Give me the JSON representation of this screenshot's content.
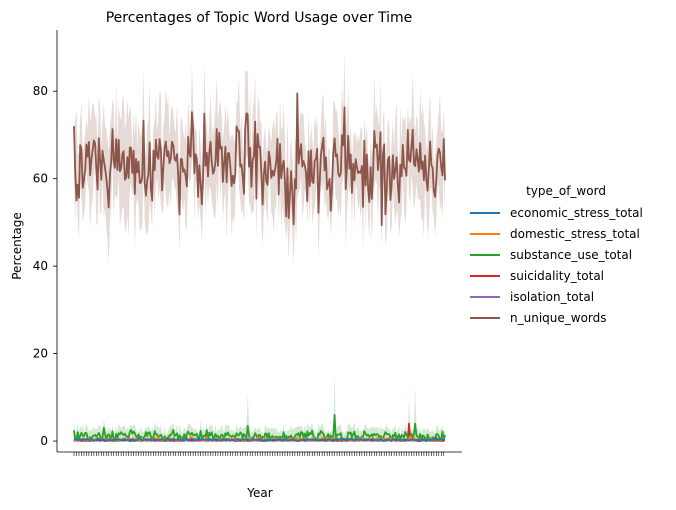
{
  "chart_data": {
    "type": "line",
    "title": "Percentages of Topic Word Usage over Time",
    "xlabel": "Year",
    "ylabel": "Percentage",
    "ylim": [
      -2.5,
      94
    ],
    "yticks": [
      0,
      20,
      40,
      60,
      80
    ],
    "legend": {
      "title": "type_of_word",
      "placement": "right"
    },
    "series": [
      {
        "name": "economic_stress_total",
        "color": "#1f77b4",
        "mean": 0.3,
        "spread": 0.2
      },
      {
        "name": "domestic_stress_total",
        "color": "#ff7f0e",
        "mean": 0.4,
        "spread": 0.4
      },
      {
        "name": "substance_use_total",
        "color": "#2ca02c",
        "mean": 1.2,
        "spread": 1.0
      },
      {
        "name": "suicidality_total",
        "color": "#d62728",
        "mean": 0.2,
        "spread": 0.2
      },
      {
        "name": "isolation_total",
        "color": "#9467bd",
        "mean": 0.1,
        "spread": 0.1
      },
      {
        "name": "n_unique_words",
        "color": "#8c564b",
        "mean": 63.5,
        "spread": 6.0
      }
    ]
  }
}
